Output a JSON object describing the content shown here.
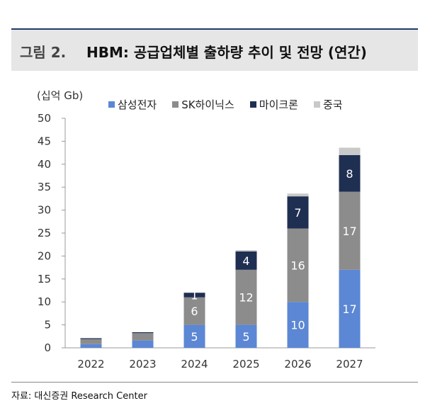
{
  "header": {
    "figure_number": "그림 2.",
    "title": "HBM: 공급업체별 출하량 추이 및 전망 (연간)"
  },
  "source": "자료: 대신증권 Research Center",
  "chart_data": {
    "type": "bar",
    "stacked": true,
    "y_unit": "(십억 Gb)",
    "ylim": [
      0,
      50
    ],
    "y_ticks": [
      0,
      5,
      10,
      15,
      20,
      25,
      30,
      35,
      40,
      45,
      50
    ],
    "categories": [
      "2022",
      "2023",
      "2024",
      "2025",
      "2026",
      "2027"
    ],
    "legend_position": "top",
    "series": [
      {
        "name": "삼성전자",
        "color": "#5b87d4",
        "values": [
          0.8,
          1.6,
          5,
          5,
          10,
          17
        ],
        "labels": [
          "",
          "",
          "5",
          "5",
          "10",
          "17"
        ]
      },
      {
        "name": "SK하이닉스",
        "color": "#8c8c8c",
        "values": [
          1.1,
          1.6,
          6,
          12,
          16,
          17
        ],
        "labels": [
          "",
          "",
          "6",
          "12",
          "16",
          "17"
        ]
      },
      {
        "name": "마이크론",
        "color": "#1f2f52",
        "values": [
          0.2,
          0.2,
          1,
          4,
          7,
          8
        ],
        "labels": [
          "",
          "",
          "1",
          "4",
          "7",
          "8"
        ]
      },
      {
        "name": "중국",
        "color": "#c9c9c9",
        "values": [
          0,
          0,
          0,
          0.3,
          0.6,
          1.6
        ],
        "labels": [
          "",
          "",
          "",
          "",
          "",
          ""
        ]
      }
    ]
  }
}
